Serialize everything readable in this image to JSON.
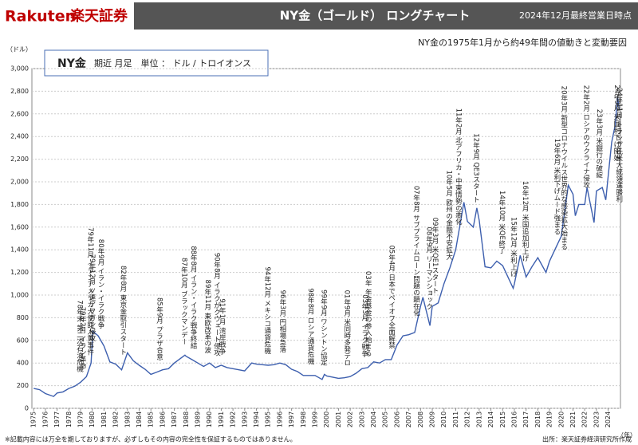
{
  "header": {
    "logo_latin": "Rakuten",
    "logo_jp": "楽天証券",
    "title": "NY金（ゴールド） ロングチャート",
    "date": "2024年12月最終営業日時点"
  },
  "chart_data": {
    "type": "line",
    "subtitle": "NY金の1975年1月から約49年間の値動きと変動要因",
    "legend_title": "NY金",
    "legend_text": "期近 月足　単位 ： ドル / トロイオンス",
    "ylabel": "（ドル）",
    "xlabel": "（年）",
    "xlim": [
      1974.85,
      2025.05
    ],
    "ylim": [
      0,
      3000
    ],
    "xticks": [
      1975,
      1976,
      1977,
      1978,
      1979,
      1980,
      1981,
      1982,
      1983,
      1984,
      1985,
      1986,
      1987,
      1988,
      1989,
      1990,
      1991,
      1992,
      1993,
      1994,
      1995,
      1996,
      1997,
      1998,
      1999,
      2000,
      2001,
      2002,
      2003,
      2004,
      2005,
      2006,
      2007,
      2008,
      2009,
      2010,
      2011,
      2012,
      2013,
      2014,
      2015,
      2016,
      2017,
      2018,
      2019,
      2020,
      2021,
      2022,
      2023,
      2024
    ],
    "yticks": [
      0,
      200,
      400,
      600,
      800,
      {
        "value": 1000,
        "label": "1,000"
      },
      {
        "value": 1200,
        "label": "1,200"
      },
      {
        "value": 1400,
        "label": "1,400"
      },
      {
        "value": 1600,
        "label": "1,600"
      },
      {
        "value": 1800,
        "label": "1,800"
      },
      {
        "value": 2000,
        "label": "2,000"
      },
      {
        "value": 2200,
        "label": "2,200"
      },
      {
        "value": 2400,
        "label": "2,400"
      },
      {
        "value": 2600,
        "label": "2,600"
      },
      {
        "value": 2800,
        "label": "2,800"
      },
      {
        "value": 3000,
        "label": "3,000"
      }
    ],
    "grid": true,
    "series": [
      {
        "name": "NY金",
        "color": "#3d5fae",
        "x": [
          1975,
          1975.5,
          1976,
          1976.7,
          1977,
          1977.5,
          1978,
          1978.5,
          1979,
          1979.5,
          1979.9,
          1980.05,
          1980.5,
          1981,
          1981.5,
          1982,
          1982.5,
          1983,
          1983.5,
          1984,
          1984.5,
          1985,
          1985.5,
          1986,
          1986.5,
          1987,
          1987.9,
          1988,
          1988.5,
          1989,
          1989.5,
          1990,
          1990.5,
          1991,
          1991.5,
          1992,
          1992.5,
          1993,
          1993.6,
          1994,
          1994.5,
          1995,
          1995.5,
          1996,
          1996.5,
          1997,
          1997.5,
          1998,
          1998.5,
          1999,
          1999.6,
          1999.8,
          2000,
          2000.5,
          2001,
          2001.5,
          2002,
          2002.5,
          2003,
          2003.5,
          2004,
          2004.5,
          2005,
          2005.5,
          2006,
          2006.5,
          2007,
          2007.5,
          2008,
          2008.2,
          2008.8,
          2009,
          2009.5,
          2010,
          2010.5,
          2011,
          2011.7,
          2012,
          2012.5,
          2012.8,
          2013,
          2013.5,
          2014,
          2014.5,
          2015,
          2015.9,
          2016,
          2016.5,
          2017,
          2017.5,
          2018,
          2018.7,
          2019,
          2019.5,
          2020,
          2020.6,
          2021,
          2021.2,
          2021.5,
          2022,
          2022.2,
          2022.8,
          2023,
          2023.5,
          2023.8,
          2024,
          2024.3,
          2024.6,
          2024.8,
          2024.95
        ],
        "values": [
          175,
          165,
          130,
          105,
          135,
          145,
          175,
          195,
          230,
          280,
          400,
          680,
          640,
          550,
          410,
          390,
          340,
          490,
          420,
          380,
          345,
          300,
          320,
          340,
          350,
          400,
          470,
          460,
          430,
          400,
          370,
          400,
          360,
          380,
          360,
          350,
          340,
          330,
          400,
          390,
          385,
          380,
          385,
          400,
          385,
          345,
          325,
          290,
          290,
          290,
          255,
          300,
          285,
          275,
          265,
          270,
          280,
          310,
          350,
          360,
          410,
          400,
          430,
          430,
          560,
          640,
          650,
          670,
          900,
          980,
          730,
          900,
          930,
          1100,
          1240,
          1400,
          1820,
          1650,
          1600,
          1770,
          1660,
          1250,
          1240,
          1300,
          1260,
          1060,
          1100,
          1350,
          1160,
          1250,
          1330,
          1200,
          1300,
          1410,
          1520,
          1970,
          1890,
          1700,
          1800,
          1800,
          1950,
          1640,
          1920,
          1950,
          1840,
          2050,
          2350,
          2500,
          2750,
          2640
        ]
      }
    ],
    "annotations": [
      {
        "x": 1978.9,
        "text": "78年末 第二次石油危機"
      },
      {
        "x": 1979.15,
        "text": "79年2月 イラン革命"
      },
      {
        "x": 1979.8,
        "text": "79年11月 イランアメリカ大使館人質事件"
      },
      {
        "x": 1979.95,
        "text": "79年12月 ソ連アフガン侵攻"
      },
      {
        "x": 1980.7,
        "text": "80年9月 イラン・イラク戦争"
      },
      {
        "x": 1982.6,
        "text": "82年8月 東京金取引スタート"
      },
      {
        "x": 1985.7,
        "text": "85年9月 プラザ合意"
      },
      {
        "x": 1987.8,
        "text": "87年10月 ブラックマンデー"
      },
      {
        "x": 1988.6,
        "text": "88年8月 イラン・イラク戦争終結"
      },
      {
        "x": 1989.8,
        "text": "89年11月 東欧改革の波"
      },
      {
        "x": 1990.6,
        "text": "90年8月 イラクがクウェート侵攻"
      },
      {
        "x": 1991.05,
        "text": "91年1月 湾岸戦争"
      },
      {
        "x": 1994.9,
        "text": "94年12月 メキシコ通貨危機"
      },
      {
        "x": 1996.2,
        "text": "96年3月 円相場急落"
      },
      {
        "x": 1998.6,
        "text": "98年8月 ロシア通貨危機"
      },
      {
        "x": 1999.7,
        "text": "99年9月 ワシントン協定"
      },
      {
        "x": 2001.7,
        "text": "01年9月 米同時多発テロ"
      },
      {
        "x": 2003.2,
        "text": "03年3月 イラク戦争"
      },
      {
        "x": 2003.5,
        "text": "03年 年金基金の参入始まる"
      },
      {
        "x": 2005.5,
        "text": "05年4月 日本でペイオフ全面解禁"
      },
      {
        "x": 2007.6,
        "text": "07年8月 サブプライムローン問題の顕在化"
      },
      {
        "x": 2008.7,
        "text": "08年9月 リーマンショック"
      },
      {
        "x": 2009.2,
        "text": "09年3月 米QE1スタート"
      },
      {
        "x": 2010.4,
        "text": "10年5月 欧州の金融不安拡大"
      },
      {
        "x": 2011.2,
        "text": "11年2月 北アフリカ・中東情勢の悪化"
      },
      {
        "x": 2012.7,
        "text": "12年9月 QE3スタート"
      },
      {
        "x": 2014.9,
        "text": "14年10月 米QE終了"
      },
      {
        "x": 2015.9,
        "text": "15年12月 米利上げ"
      },
      {
        "x": 2016.9,
        "text": "16年12月 米国追加利上げ"
      },
      {
        "x": 2019.6,
        "text": "19年6月 米利下げムード強まる"
      },
      {
        "x": 2020.2,
        "text": "20年3月 新型コロナウイルス世界的な感染拡大始まる"
      },
      {
        "x": 2022.1,
        "text": "22年2月 ロシアのウクライナ侵攻"
      },
      {
        "x": 2023.2,
        "text": "23年3月 米銀行の破綻"
      },
      {
        "x": 2024.7,
        "text": "24年9月 米国利下げ開始"
      },
      {
        "x": 2024.9,
        "text": "24年11月 トランプ氏米大統領選勝利"
      }
    ]
  },
  "footer": {
    "note": "※記載内容には万全を期しておりますが、必ずしもその内容の完全性を保証するものではありません。",
    "source": "出所：楽天証券経済研究所作成"
  }
}
